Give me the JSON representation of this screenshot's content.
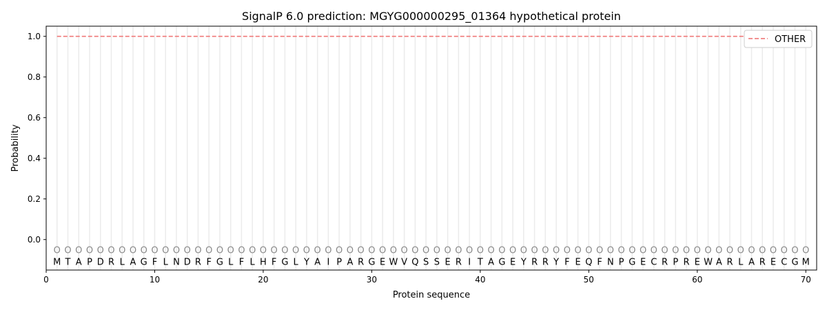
{
  "chart_data": {
    "type": "line",
    "title": "SignalP 6.0 prediction: MGYG000000295_01364 hypothetical protein",
    "xlabel": "Protein sequence",
    "ylabel": "Probability",
    "xlim": [
      0,
      71
    ],
    "ylim": [
      -0.15,
      1.05
    ],
    "xticks": [
      0,
      10,
      20,
      30,
      40,
      50,
      60,
      70
    ],
    "yticks": [
      0.0,
      0.2,
      0.4,
      0.6,
      0.8,
      1.0
    ],
    "ytick_labels": [
      "0.0",
      "0.2",
      "0.4",
      "0.6",
      "0.8",
      "1.0"
    ],
    "sequence": [
      "M",
      "T",
      "A",
      "P",
      "D",
      "R",
      "L",
      "A",
      "G",
      "F",
      "L",
      "N",
      "D",
      "R",
      "F",
      "G",
      "L",
      "F",
      "L",
      "H",
      "F",
      "G",
      "L",
      "Y",
      "A",
      "I",
      "P",
      "A",
      "R",
      "G",
      "E",
      "W",
      "V",
      "Q",
      "S",
      "S",
      "E",
      "R",
      "I",
      "T",
      "A",
      "G",
      "E",
      "Y",
      "R",
      "R",
      "Y",
      "F",
      "E",
      "Q",
      "F",
      "N",
      "P",
      "G",
      "E",
      "C",
      "R",
      "P",
      "R",
      "E",
      "W",
      "A",
      "R",
      "L",
      "A",
      "R",
      "E",
      "C",
      "G",
      "M"
    ],
    "region_label": "O",
    "series": [
      {
        "name": "OTHER",
        "color": "#f08080",
        "style": "dashed",
        "x_range": [
          1,
          70
        ],
        "value": 1.0
      }
    ],
    "legend_placement": "top-right",
    "grid": "vertical lines at each residue"
  }
}
